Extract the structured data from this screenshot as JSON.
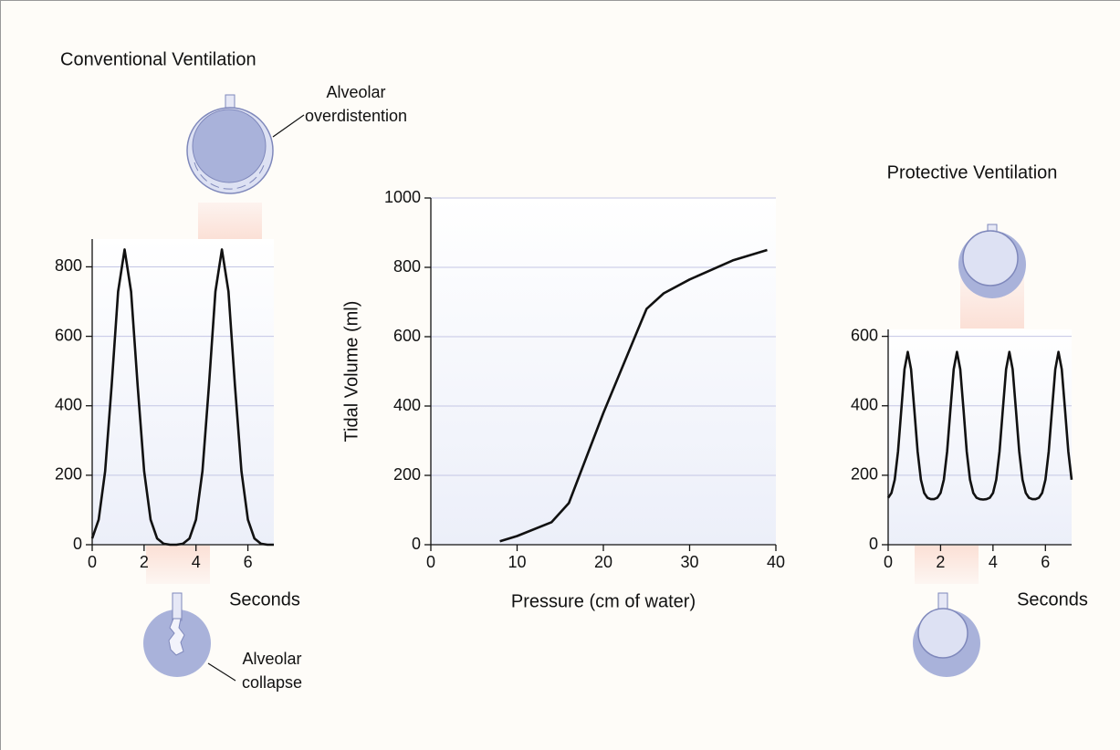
{
  "chart_data": [
    {
      "type": "line",
      "title": "Conventional Ventilation",
      "xlabel": "Seconds",
      "annotations": [
        [
          "Alveolar",
          "overdistention"
        ],
        [
          "Alveolar",
          "collapse"
        ]
      ],
      "x": [
        0,
        0.25,
        0.5,
        0.75,
        1,
        1.25,
        1.5,
        1.75,
        2,
        2.25,
        2.5,
        2.75,
        3,
        3.25,
        3.5,
        3.75,
        4,
        4.25,
        4.5,
        4.75,
        5,
        5.25,
        5.5,
        5.75,
        6,
        6.25,
        6.5,
        6.75,
        7
      ],
      "values": [
        18,
        72,
        212,
        458,
        729,
        850,
        729,
        458,
        212,
        72,
        18,
        3,
        0,
        0,
        3,
        18,
        72,
        212,
        458,
        729,
        850,
        729,
        458,
        212,
        72,
        18,
        3,
        0,
        0
      ],
      "color": "#111111",
      "xlim": [
        0,
        7
      ],
      "ylim": [
        0,
        880
      ],
      "xticks": [
        0,
        2,
        4,
        6
      ],
      "yticks": [
        0,
        200,
        400,
        600,
        800
      ],
      "grid": true
    },
    {
      "type": "line",
      "xlabel": "Pressure (cm of water)",
      "ylabel": "Tidal Volume (ml)",
      "x": [
        8,
        10,
        14,
        16,
        18,
        20,
        22,
        24,
        25,
        27,
        30,
        35,
        39
      ],
      "values": [
        10,
        25,
        65,
        120,
        250,
        380,
        500,
        620,
        680,
        725,
        765,
        820,
        850
      ],
      "color": "#111111",
      "xlim": [
        0,
        40
      ],
      "ylim": [
        0,
        1000
      ],
      "xticks": [
        0,
        10,
        20,
        30,
        40
      ],
      "yticks": [
        0,
        200,
        400,
        600,
        800,
        1000
      ],
      "grid": true
    },
    {
      "type": "line",
      "title": "Protective Ventilation",
      "xlabel": "Seconds",
      "x": [
        0,
        0.125,
        0.25,
        0.375,
        0.5,
        0.625,
        0.75,
        0.875,
        1,
        1.125,
        1.25,
        1.375,
        1.5,
        1.625,
        1.75,
        1.875,
        2,
        2.125,
        2.25,
        2.375,
        2.5,
        2.625,
        2.75,
        2.875,
        3,
        3.125,
        3.25,
        3.375,
        3.5,
        3.625,
        3.75,
        3.875,
        4,
        4.125,
        4.25,
        4.375,
        4.5,
        4.625,
        4.75,
        4.875,
        5,
        5.125,
        5.25,
        5.375,
        5.5,
        5.625,
        5.75,
        5.875,
        6,
        6.125,
        6.25,
        6.375,
        6.5,
        6.625,
        6.75,
        6.875,
        7
      ],
      "values": [
        135,
        149,
        187,
        268,
        388,
        505,
        555,
        505,
        388,
        268,
        187,
        149,
        135,
        131,
        131,
        135,
        149,
        187,
        268,
        388,
        505,
        555,
        505,
        388,
        268,
        187,
        149,
        135,
        131,
        130,
        131,
        135,
        149,
        187,
        268,
        388,
        505,
        555,
        505,
        388,
        268,
        187,
        149,
        135,
        131,
        131,
        135,
        149,
        187,
        268,
        388,
        505,
        555,
        505,
        388,
        268,
        187
      ],
      "color": "#111111",
      "xlim": [
        0,
        7
      ],
      "ylim": [
        0,
        620
      ],
      "xticks": [
        0,
        2,
        4,
        6
      ],
      "yticks": [
        0,
        200,
        400,
        600
      ],
      "grid": true
    }
  ]
}
